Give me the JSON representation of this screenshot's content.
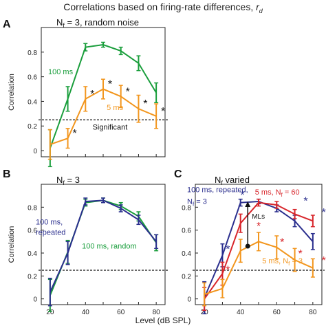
{
  "figure": {
    "title_main": "Correlations based on firing-rate differences, ",
    "title_sym": "r",
    "title_sub": "d",
    "xlabel": "Level (dB SPL)",
    "significant_level": 0.25
  },
  "colors": {
    "green": "#1a9e3c",
    "orange": "#f2961e",
    "navy": "#2b2f8e",
    "red": "#d8262b",
    "black": "#111111"
  },
  "chart_data": [
    {
      "panel": "A",
      "type": "line",
      "title": "Nf = 3, random noise",
      "title_parts": {
        "n": "N",
        "sub": "f",
        "rest": " = 3, random noise"
      },
      "ylabel": "Correlation",
      "ylim": [
        -0.05,
        1.0
      ],
      "yticks": [
        0,
        0.2,
        0.4,
        0.6,
        0.8
      ],
      "ytick_labels": [
        "0",
        "0.2",
        "0.4",
        "0.6",
        "0.8"
      ],
      "xlim": [
        15,
        85
      ],
      "xticks": [
        20,
        30,
        40,
        50,
        60,
        70,
        80
      ],
      "xtick_labels": [],
      "significant_label": "Significant",
      "series": [
        {
          "name": "100 ms",
          "color": "green",
          "x": [
            20,
            30,
            40,
            50,
            60,
            70,
            80
          ],
          "y": [
            0.02,
            0.42,
            0.84,
            0.86,
            0.81,
            0.71,
            0.47
          ],
          "err": [
            0.15,
            0.1,
            0.03,
            0.02,
            0.03,
            0.06,
            0.08
          ]
        },
        {
          "name": "5 ms",
          "color": "orange",
          "x": [
            20,
            30,
            40,
            50,
            60,
            70,
            80
          ],
          "y": [
            0.05,
            0.1,
            0.42,
            0.5,
            0.44,
            0.34,
            0.28
          ],
          "err": [
            0.12,
            0.08,
            0.1,
            0.08,
            0.09,
            0.11,
            0.1
          ]
        }
      ],
      "series_labels": [
        "100 ms",
        "5 ms"
      ],
      "markers": [
        {
          "symbol": "*",
          "x": 30,
          "y": 0.1
        },
        {
          "symbol": "*",
          "x": 40,
          "y": 0.42
        },
        {
          "symbol": "*",
          "x": 50,
          "y": 0.5
        },
        {
          "symbol": "*",
          "x": 60,
          "y": 0.44
        },
        {
          "symbol": "*",
          "x": 70,
          "y": 0.34
        },
        {
          "symbol": "*",
          "x": 80,
          "y": 0.28
        }
      ],
      "marker_color": "black"
    },
    {
      "panel": "B",
      "type": "line",
      "title": "Nf = 3",
      "title_parts": {
        "n": "N",
        "sub": "f",
        "rest": " = 3"
      },
      "ylabel": "Correlation",
      "ylim": [
        -0.05,
        1.0
      ],
      "yticks": [
        0,
        0.2,
        0.4,
        0.6,
        0.8
      ],
      "ytick_labels": [
        "0",
        "0.2",
        "0.4",
        "0.6",
        "0.8"
      ],
      "xlim": [
        15,
        85
      ],
      "xticks": [
        20,
        30,
        40,
        50,
        60,
        70,
        80
      ],
      "xtick_labels": [
        "20",
        "40",
        "60",
        "80"
      ],
      "series": [
        {
          "name": "100 ms, random",
          "color": "green",
          "x": [
            20,
            30,
            40,
            50,
            60,
            70,
            80
          ],
          "y": [
            0.03,
            0.41,
            0.84,
            0.86,
            0.81,
            0.72,
            0.49
          ],
          "err": [
            0.14,
            0.1,
            0.03,
            0.02,
            0.03,
            0.04,
            0.07
          ]
        },
        {
          "name": "100 ms, repeated",
          "color": "navy",
          "x": [
            20,
            30,
            40,
            50,
            60,
            70,
            80
          ],
          "y": [
            0.06,
            0.4,
            0.85,
            0.86,
            0.79,
            0.69,
            0.5
          ],
          "err": [
            0.12,
            0.1,
            0.03,
            0.02,
            0.03,
            0.04,
            0.06
          ]
        }
      ],
      "series_labels": [
        "100 ms,",
        "repeated",
        "100 ms, random"
      ]
    },
    {
      "panel": "C",
      "type": "line",
      "title": "Nf varied",
      "title_parts": {
        "n": "N",
        "sub": "f",
        "rest": " varied"
      },
      "ylabel": "",
      "ylim": [
        -0.05,
        1.0
      ],
      "yticks": [
        0,
        0.2,
        0.4,
        0.6,
        0.8
      ],
      "ytick_labels": [
        "0",
        "0.2",
        "0.4",
        "0.6",
        "0.8"
      ],
      "xlim": [
        15,
        85
      ],
      "xticks": [
        20,
        30,
        40,
        50,
        60,
        70,
        80
      ],
      "xtick_labels": [
        "20",
        "40",
        "60",
        "80"
      ],
      "series": [
        {
          "name": "100 ms, repeated, Nf = 3",
          "color": "navy",
          "x": [
            20,
            30,
            40,
            50,
            60,
            70,
            80
          ],
          "y": [
            0.01,
            0.38,
            0.84,
            0.85,
            0.79,
            0.68,
            0.5
          ],
          "err": [
            0.14,
            0.1,
            0.03,
            0.02,
            0.03,
            0.05,
            0.07
          ]
        },
        {
          "name": "5 ms, Nf = 60",
          "color": "red",
          "x": [
            20,
            30,
            40,
            50,
            60,
            70,
            80
          ],
          "y": [
            0.0,
            0.22,
            0.66,
            0.84,
            0.82,
            0.74,
            0.68
          ],
          "err": [
            0.1,
            0.1,
            0.08,
            0.03,
            0.03,
            0.04,
            0.05
          ]
        },
        {
          "name": "5 ms, Nf = 3",
          "color": "orange",
          "x": [
            20,
            30,
            40,
            50,
            60,
            70,
            80
          ],
          "y": [
            0.04,
            0.09,
            0.42,
            0.5,
            0.45,
            0.34,
            0.27
          ],
          "err": [
            0.1,
            0.08,
            0.1,
            0.08,
            0.1,
            0.1,
            0.08
          ]
        }
      ],
      "series_labels": [
        "100 ms, repeated,",
        "N",
        "f",
        " = 3",
        "5 ms, N",
        "f",
        ", = 60",
        "5 ms, N",
        "f",
        " = 3"
      ],
      "mls_label": "MLs",
      "mls_arrow": {
        "x": 44,
        "from": 0.46,
        "to": 0.85
      },
      "markers": [
        {
          "symbol": "*",
          "x": 30,
          "y": 0.38,
          "color": "navy"
        },
        {
          "symbol": "*",
          "x": 38,
          "y": 0.85,
          "color": "navy"
        },
        {
          "symbol": "*",
          "x": 73,
          "y": 0.8,
          "color": "navy"
        },
        {
          "symbol": "*",
          "x": 83,
          "y": 0.7,
          "color": "navy"
        },
        {
          "symbol": "*",
          "x": 30,
          "y": 0.2,
          "color": "red"
        },
        {
          "symbol": "*",
          "x": 47,
          "y": 0.58,
          "color": "red"
        },
        {
          "symbol": "*",
          "x": 60,
          "y": 0.44,
          "color": "red"
        },
        {
          "symbol": "*",
          "x": 70,
          "y": 0.34,
          "color": "red"
        },
        {
          "symbol": "*",
          "x": 83,
          "y": 0.28,
          "color": "red"
        }
      ]
    }
  ],
  "panel_letters": [
    "A",
    "B",
    "C"
  ]
}
